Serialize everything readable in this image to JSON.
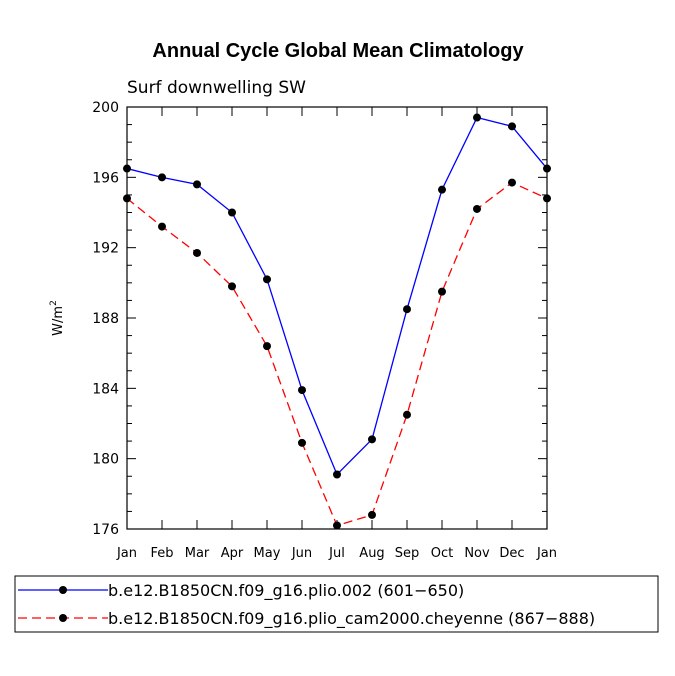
{
  "chart_data": {
    "type": "line",
    "title": "Annual Cycle Global Mean Climatology",
    "subtitle": "Surf downwelling SW",
    "ylabel": "W/m",
    "ylabel_sup": "2",
    "categories": [
      "Jan",
      "Feb",
      "Mar",
      "Apr",
      "May",
      "Jun",
      "Jul",
      "Aug",
      "Sep",
      "Oct",
      "Nov",
      "Dec",
      "Jan"
    ],
    "ylim": [
      176,
      200
    ],
    "yticks": [
      "176",
      "180",
      "184",
      "188",
      "192",
      "196",
      "200"
    ],
    "series": [
      {
        "name": "b.e12.B1850CN.f09_g16.plio.002 (601−650)",
        "color": "#0000ff",
        "dash": "solid",
        "values": [
          196.5,
          196.0,
          195.6,
          194.0,
          190.2,
          183.9,
          179.1,
          181.1,
          188.5,
          195.3,
          199.4,
          198.9,
          196.5
        ]
      },
      {
        "name": "b.e12.B1850CN.f09_g16.plio_cam2000.cheyenne (867−888)",
        "color": "#ff0000",
        "dash": "dashed",
        "values": [
          194.8,
          193.2,
          191.7,
          189.8,
          186.4,
          180.9,
          176.2,
          176.8,
          182.5,
          189.5,
          194.2,
          195.7,
          194.8
        ]
      }
    ]
  }
}
